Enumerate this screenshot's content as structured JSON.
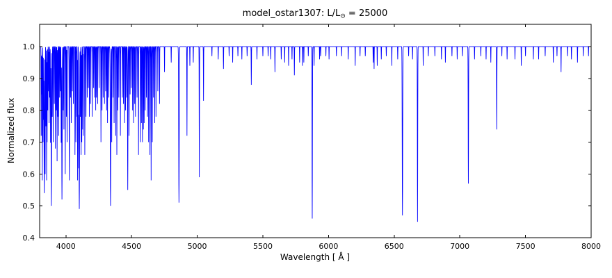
{
  "chart_data": {
    "type": "line",
    "title": "model_ostar1307: L/L⊙ = 25000",
    "title_parts": {
      "prefix": "model_ostar1307: L/L",
      "sub": "⊙",
      "suffix": " = 25000"
    },
    "xlabel": "Wavelength [ Å ]",
    "ylabel": "Normalized flux",
    "xlim": [
      3800,
      8000
    ],
    "ylim": [
      0.4,
      1.07
    ],
    "xticks": [
      4000,
      4500,
      5000,
      5500,
      6000,
      6500,
      7000,
      7500,
      8000
    ],
    "yticks": [
      0.4,
      0.5,
      0.6,
      0.7,
      0.8,
      0.9,
      1.0
    ],
    "grid": false,
    "legend": "none",
    "line_color": "#0000ff",
    "axis_color": "#000000",
    "background": "#ffffff",
    "continuum": 1.0,
    "absorption_lines": [
      [
        3812,
        0.28,
        0.9
      ],
      [
        3816,
        0.15,
        0.8
      ],
      [
        3820,
        0.42,
        0.9
      ],
      [
        3826,
        0.3,
        0.9
      ],
      [
        3830,
        0.22,
        0.8
      ],
      [
        3835,
        0.46,
        1.8
      ],
      [
        3842,
        0.4,
        0.9
      ],
      [
        3848,
        0.25,
        0.8
      ],
      [
        3853,
        0.42,
        0.9
      ],
      [
        3857,
        0.3,
        0.8
      ],
      [
        3862,
        0.2,
        0.8
      ],
      [
        3868,
        0.14,
        0.8
      ],
      [
        3872,
        0.24,
        0.8
      ],
      [
        3878,
        0.16,
        0.8
      ],
      [
        3883,
        0.3,
        0.9
      ],
      [
        3889,
        0.5,
        1.8
      ],
      [
        3896,
        0.22,
        0.8
      ],
      [
        3903,
        0.3,
        0.9
      ],
      [
        3912,
        0.18,
        0.8
      ],
      [
        3920,
        0.32,
        0.9
      ],
      [
        3927,
        0.2,
        0.8
      ],
      [
        3933,
        0.36,
        0.9
      ],
      [
        3938,
        0.22,
        0.8
      ],
      [
        3945,
        0.28,
        0.8
      ],
      [
        3952,
        0.16,
        0.8
      ],
      [
        3958,
        0.14,
        0.8
      ],
      [
        3964,
        0.3,
        0.9
      ],
      [
        3970,
        0.48,
        1.8
      ],
      [
        3979,
        0.2,
        0.8
      ],
      [
        3985,
        0.26,
        0.8
      ],
      [
        3995,
        0.4,
        0.9
      ],
      [
        4004,
        0.22,
        0.8
      ],
      [
        4009,
        0.3,
        0.9
      ],
      [
        4026,
        0.42,
        1.4
      ],
      [
        4035,
        0.16,
        0.8
      ],
      [
        4041,
        0.24,
        0.8
      ],
      [
        4049,
        0.14,
        0.8
      ],
      [
        4057,
        0.18,
        0.8
      ],
      [
        4069,
        0.34,
        0.9
      ],
      [
        4076,
        0.3,
        0.9
      ],
      [
        4085,
        0.22,
        0.8
      ],
      [
        4089,
        0.42,
        0.9
      ],
      [
        4097,
        0.36,
        1.0
      ],
      [
        4102,
        0.51,
        2.0
      ],
      [
        4110,
        0.22,
        0.8
      ],
      [
        4116,
        0.34,
        0.9
      ],
      [
        4121,
        0.3,
        0.9
      ],
      [
        4128,
        0.26,
        0.8
      ],
      [
        4132,
        0.28,
        0.8
      ],
      [
        4144,
        0.34,
        1.0
      ],
      [
        4153,
        0.22,
        0.8
      ],
      [
        4163,
        0.16,
        0.8
      ],
      [
        4171,
        0.13,
        0.8
      ],
      [
        4179,
        0.22,
        0.8
      ],
      [
        4187,
        0.18,
        0.8
      ],
      [
        4200,
        0.22,
        0.9
      ],
      [
        4211,
        0.13,
        0.8
      ],
      [
        4219,
        0.16,
        0.8
      ],
      [
        4227,
        0.2,
        0.8
      ],
      [
        4233,
        0.16,
        0.8
      ],
      [
        4242,
        0.18,
        0.8
      ],
      [
        4253,
        0.13,
        0.8
      ],
      [
        4267,
        0.3,
        0.9
      ],
      [
        4275,
        0.2,
        0.8
      ],
      [
        4284,
        0.16,
        0.8
      ],
      [
        4294,
        0.18,
        0.8
      ],
      [
        4303,
        0.14,
        0.8
      ],
      [
        4310,
        0.2,
        0.8
      ],
      [
        4317,
        0.24,
        0.8
      ],
      [
        4326,
        0.16,
        0.8
      ],
      [
        4340,
        0.5,
        2.0
      ],
      [
        4349,
        0.3,
        0.9
      ],
      [
        4359,
        0.16,
        0.8
      ],
      [
        4367,
        0.24,
        0.8
      ],
      [
        4379,
        0.28,
        0.9
      ],
      [
        4388,
        0.34,
        1.0
      ],
      [
        4395,
        0.2,
        0.8
      ],
      [
        4403,
        0.16,
        0.8
      ],
      [
        4415,
        0.28,
        0.9
      ],
      [
        4430,
        0.16,
        0.8
      ],
      [
        4438,
        0.18,
        0.8
      ],
      [
        4447,
        0.24,
        0.8
      ],
      [
        4454,
        0.2,
        0.8
      ],
      [
        4462,
        0.16,
        0.8
      ],
      [
        4471,
        0.45,
        1.5
      ],
      [
        4481,
        0.28,
        0.9
      ],
      [
        4489,
        0.15,
        0.8
      ],
      [
        4498,
        0.13,
        0.8
      ],
      [
        4508,
        0.2,
        0.8
      ],
      [
        4515,
        0.24,
        0.8
      ],
      [
        4524,
        0.18,
        0.8
      ],
      [
        4530,
        0.22,
        0.8
      ],
      [
        4542,
        0.16,
        0.9
      ],
      [
        4553,
        0.34,
        0.9
      ],
      [
        4568,
        0.3,
        0.9
      ],
      [
        4575,
        0.24,
        0.8
      ],
      [
        4583,
        0.3,
        0.9
      ],
      [
        4590,
        0.26,
        0.8
      ],
      [
        4596,
        0.24,
        0.8
      ],
      [
        4604,
        0.2,
        0.8
      ],
      [
        4613,
        0.16,
        0.8
      ],
      [
        4621,
        0.22,
        0.8
      ],
      [
        4630,
        0.3,
        0.9
      ],
      [
        4640,
        0.34,
        0.9
      ],
      [
        4649,
        0.42,
        0.9
      ],
      [
        4658,
        0.3,
        0.9
      ],
      [
        4667,
        0.16,
        0.8
      ],
      [
        4676,
        0.24,
        0.8
      ],
      [
        4686,
        0.22,
        0.9
      ],
      [
        4700,
        0.14,
        0.8
      ],
      [
        4713,
        0.18,
        0.9
      ],
      [
        4751,
        0.08,
        0.8
      ],
      [
        4802,
        0.05,
        0.8
      ],
      [
        4861,
        0.49,
        2.0
      ],
      [
        4922,
        0.28,
        1.0
      ],
      [
        4944,
        0.06,
        0.8
      ],
      [
        4970,
        0.05,
        0.8
      ],
      [
        5016,
        0.41,
        1.0
      ],
      [
        5048,
        0.17,
        0.9
      ],
      [
        5112,
        0.03,
        0.8
      ],
      [
        5160,
        0.04,
        0.8
      ],
      [
        5200,
        0.07,
        0.9
      ],
      [
        5243,
        0.03,
        0.8
      ],
      [
        5270,
        0.05,
        0.8
      ],
      [
        5310,
        0.03,
        0.8
      ],
      [
        5340,
        0.04,
        0.8
      ],
      [
        5380,
        0.03,
        0.8
      ],
      [
        5412,
        0.12,
        1.0
      ],
      [
        5455,
        0.04,
        0.8
      ],
      [
        5500,
        0.03,
        0.8
      ],
      [
        5540,
        0.03,
        0.8
      ],
      [
        5560,
        0.04,
        0.8
      ],
      [
        5592,
        0.08,
        0.9
      ],
      [
        5640,
        0.04,
        0.8
      ],
      [
        5666,
        0.05,
        0.8
      ],
      [
        5696,
        0.06,
        0.8
      ],
      [
        5722,
        0.04,
        0.8
      ],
      [
        5740,
        0.09,
        0.9
      ],
      [
        5780,
        0.05,
        0.8
      ],
      [
        5801,
        0.06,
        0.8
      ],
      [
        5812,
        0.05,
        0.8
      ],
      [
        5846,
        0.03,
        0.8
      ],
      [
        5876,
        0.54,
        1.4
      ],
      [
        5890,
        0.06,
        0.8
      ],
      [
        5932,
        0.04,
        0.8
      ],
      [
        5940,
        0.03,
        0.8
      ],
      [
        5980,
        0.03,
        0.8
      ],
      [
        6004,
        0.04,
        0.8
      ],
      [
        6060,
        0.03,
        0.8
      ],
      [
        6100,
        0.03,
        0.8
      ],
      [
        6150,
        0.04,
        0.8
      ],
      [
        6203,
        0.06,
        0.8
      ],
      [
        6240,
        0.03,
        0.8
      ],
      [
        6280,
        0.03,
        0.8
      ],
      [
        6340,
        0.05,
        0.8
      ],
      [
        6347,
        0.07,
        0.8
      ],
      [
        6371,
        0.06,
        0.8
      ],
      [
        6402,
        0.04,
        0.8
      ],
      [
        6440,
        0.03,
        0.8
      ],
      [
        6482,
        0.06,
        0.8
      ],
      [
        6527,
        0.04,
        0.8
      ],
      [
        6563,
        0.53,
        1.8
      ],
      [
        6610,
        0.03,
        0.8
      ],
      [
        6640,
        0.04,
        0.8
      ],
      [
        6678,
        0.55,
        1.4
      ],
      [
        6721,
        0.06,
        0.8
      ],
      [
        6760,
        0.03,
        0.8
      ],
      [
        6810,
        0.03,
        0.8
      ],
      [
        6860,
        0.04,
        0.8
      ],
      [
        6890,
        0.05,
        0.8
      ],
      [
        6940,
        0.03,
        0.8
      ],
      [
        6980,
        0.04,
        0.8
      ],
      [
        7020,
        0.03,
        0.8
      ],
      [
        7065,
        0.43,
        1.4
      ],
      [
        7112,
        0.04,
        0.8
      ],
      [
        7160,
        0.03,
        0.8
      ],
      [
        7200,
        0.04,
        0.8
      ],
      [
        7236,
        0.05,
        0.8
      ],
      [
        7281,
        0.26,
        1.2
      ],
      [
        7320,
        0.03,
        0.8
      ],
      [
        7360,
        0.04,
        0.8
      ],
      [
        7420,
        0.04,
        0.8
      ],
      [
        7468,
        0.06,
        0.8
      ],
      [
        7500,
        0.03,
        0.8
      ],
      [
        7560,
        0.04,
        0.8
      ],
      [
        7600,
        0.04,
        0.8
      ],
      [
        7650,
        0.03,
        0.8
      ],
      [
        7712,
        0.05,
        0.8
      ],
      [
        7740,
        0.03,
        0.8
      ],
      [
        7771,
        0.08,
        0.9
      ],
      [
        7820,
        0.03,
        0.8
      ],
      [
        7850,
        0.04,
        0.8
      ],
      [
        7896,
        0.05,
        0.8
      ],
      [
        7940,
        0.03,
        0.8
      ],
      [
        7980,
        0.03,
        0.8
      ]
    ]
  }
}
